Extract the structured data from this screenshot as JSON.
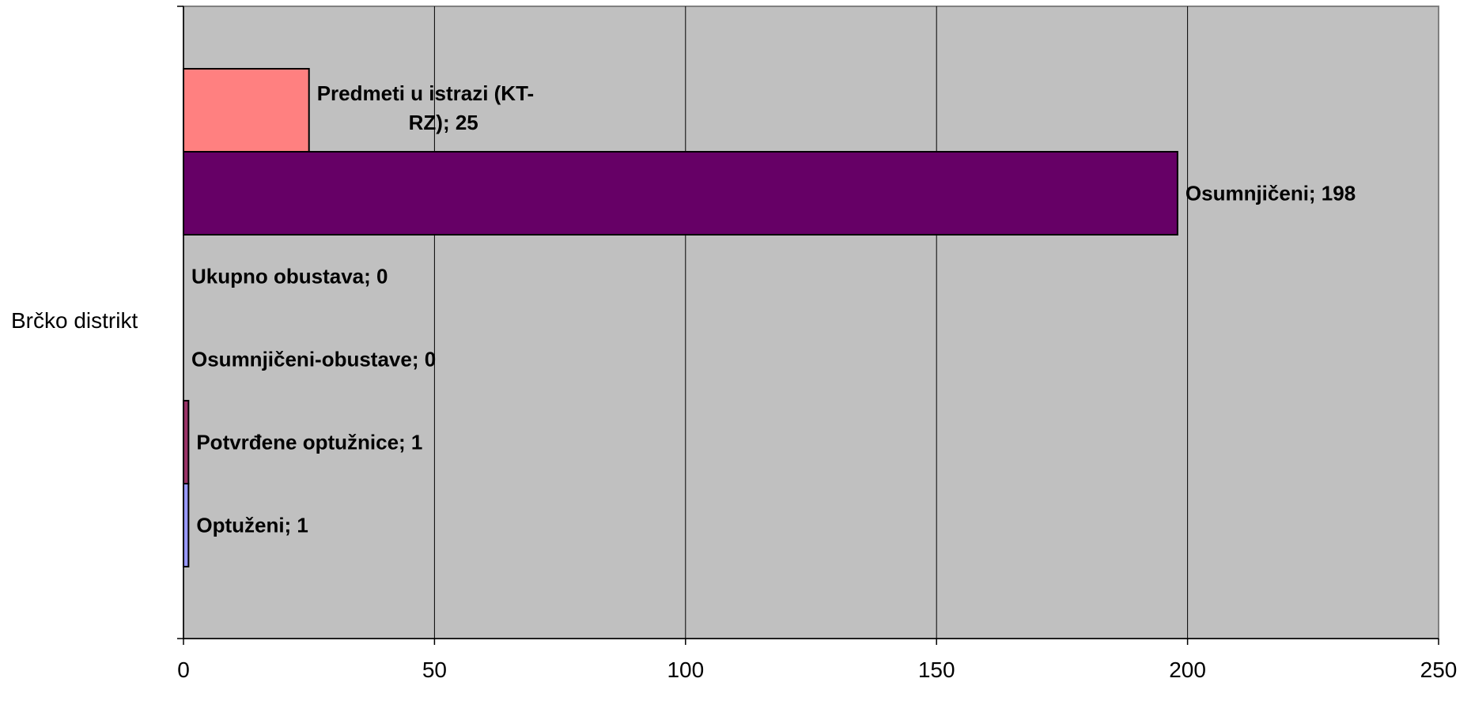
{
  "chart_data": {
    "type": "bar",
    "orientation": "horizontal",
    "category": "Brčko distrikt",
    "xlim": [
      0,
      250
    ],
    "x_ticks": [
      0,
      50,
      100,
      150,
      200,
      250
    ],
    "grid": true,
    "series": [
      {
        "name": "Optuženi",
        "value": 1,
        "label": "Optuženi; 1",
        "color": "#9999ff"
      },
      {
        "name": "Potvrđene optužnice",
        "value": 1,
        "label": "Potvrđene optužnice; 1",
        "color": "#993366"
      },
      {
        "name": "Osumnjičeni-obustave",
        "value": 0,
        "label": "Osumnjičeni-obustave; 0",
        "color": "#ffffcc"
      },
      {
        "name": "Ukupno obustava",
        "value": 0,
        "label": "Ukupno obustava; 0",
        "color": "#ccffff"
      },
      {
        "name": "Osumnjičeni",
        "value": 198,
        "label": "Osumnjičeni; 198",
        "color": "#660066"
      },
      {
        "name": "Predmeti u istrazi (KT-RZ)",
        "value": 25,
        "label_lines": [
          "Predmeti u istrazi (KT-",
          "RZ); 25"
        ],
        "color": "#ff8080"
      }
    ],
    "plot_background": "#c0c0c0"
  }
}
